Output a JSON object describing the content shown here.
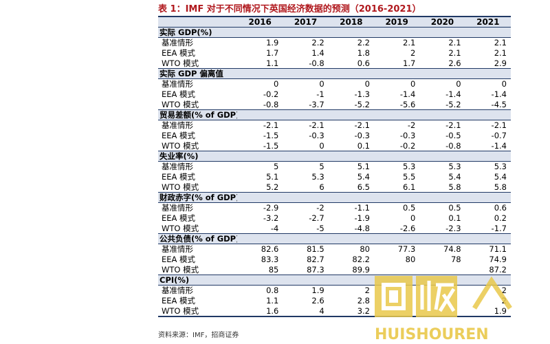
{
  "title": "表 1：IMF 对于不同情况下英国经济数据的预测（2016-2021）",
  "header": {
    "blank": "",
    "years": [
      "2016",
      "2017",
      "2018",
      "2019",
      "2020",
      "2021"
    ]
  },
  "sections": [
    {
      "label": "实际 GDP(%)",
      "rows": [
        {
          "label": "基准情形",
          "values": [
            "1.9",
            "2.2",
            "2.2",
            "2.1",
            "2.1",
            "2.1"
          ]
        },
        {
          "label": "EEA 模式",
          "values": [
            "1.7",
            "1.4",
            "1.8",
            "2",
            "2.1",
            "2.1"
          ]
        },
        {
          "label": "WTO 模式",
          "values": [
            "1.1",
            "-0.8",
            "0.6",
            "1.7",
            "2.6",
            "2.9"
          ]
        }
      ]
    },
    {
      "label": "实际 GDP 偏离值",
      "rows": [
        {
          "label": "基准情形",
          "values": [
            "0",
            "0",
            "0",
            "0",
            "0",
            "0"
          ]
        },
        {
          "label": "EEA 模式",
          "values": [
            "-0.2",
            "-1",
            "-1.3",
            "-1.4",
            "-1.4",
            "-1.4"
          ]
        },
        {
          "label": "WTO 模式",
          "values": [
            "-0.8",
            "-3.7",
            "-5.2",
            "-5.6",
            "-5.2",
            "-4.5"
          ]
        }
      ]
    },
    {
      "label": "贸易差额(% of GDP)",
      "rows": [
        {
          "label": "基准情形",
          "values": [
            "-2.1",
            "-2.1",
            "-2.1",
            "-2",
            "-2.1",
            "-2.1"
          ]
        },
        {
          "label": "EEA 模式",
          "values": [
            "-1.5",
            "-0.3",
            "-0.3",
            "-0.3",
            "-0.5",
            "-0.7"
          ]
        },
        {
          "label": "WTO 模式",
          "values": [
            "-1.5",
            "0",
            "0.1",
            "-0.2",
            "-0.8",
            "-1.4"
          ]
        }
      ]
    },
    {
      "label": "失业率(%)",
      "rows": [
        {
          "label": "基准情形",
          "values": [
            "5",
            "5",
            "5.1",
            "5.3",
            "5.3",
            "5.3"
          ]
        },
        {
          "label": "EEA 模式",
          "values": [
            "5.1",
            "5.3",
            "5.4",
            "5.5",
            "5.4",
            "5.4"
          ]
        },
        {
          "label": "WTO 模式",
          "values": [
            "5.2",
            "6",
            "6.5",
            "6.1",
            "5.8",
            "5.8"
          ]
        }
      ]
    },
    {
      "label": "财政赤字(% of GDP)",
      "rows": [
        {
          "label": "基准情形",
          "values": [
            "-2.9",
            "-2",
            "-1.1",
            "0.5",
            "0.5",
            "0.6"
          ]
        },
        {
          "label": "EEA 模式",
          "values": [
            "-3.2",
            "-2.7",
            "-1.9",
            "0",
            "0.1",
            "0.2"
          ]
        },
        {
          "label": "WTO 模式",
          "values": [
            "-4",
            "-5",
            "-4.8",
            "-2.6",
            "-2.3",
            "-1.7"
          ]
        }
      ]
    },
    {
      "label": "公共负债(% of GDP)",
      "rows": [
        {
          "label": "基准情形",
          "values": [
            "82.6",
            "81.5",
            "80",
            "77.3",
            "74.8",
            "71.1"
          ]
        },
        {
          "label": "EEA 模式",
          "values": [
            "83.3",
            "82.7",
            "82.2",
            "80",
            "78",
            "74.9"
          ]
        },
        {
          "label": "WTO 模式",
          "values": [
            "85",
            "87.3",
            "89.9",
            "",
            "",
            "87.2"
          ]
        }
      ]
    },
    {
      "label": "CPI(%)",
      "rows": [
        {
          "label": "基准情形",
          "values": [
            "0.8",
            "1.9",
            "2",
            "",
            "",
            "2"
          ]
        },
        {
          "label": "EEA 模式",
          "values": [
            "1.1",
            "2.6",
            "2.8",
            "",
            "",
            "2"
          ]
        },
        {
          "label": "WTO 模式",
          "values": [
            "1.6",
            "4",
            "3.2",
            "",
            "",
            "1.9"
          ]
        }
      ]
    }
  ],
  "source": "资料来源：IMF，招商证券",
  "watermark": {
    "logo_text": "回收",
    "brand": "HUISHOUREN",
    "color": "#e9c84a"
  }
}
